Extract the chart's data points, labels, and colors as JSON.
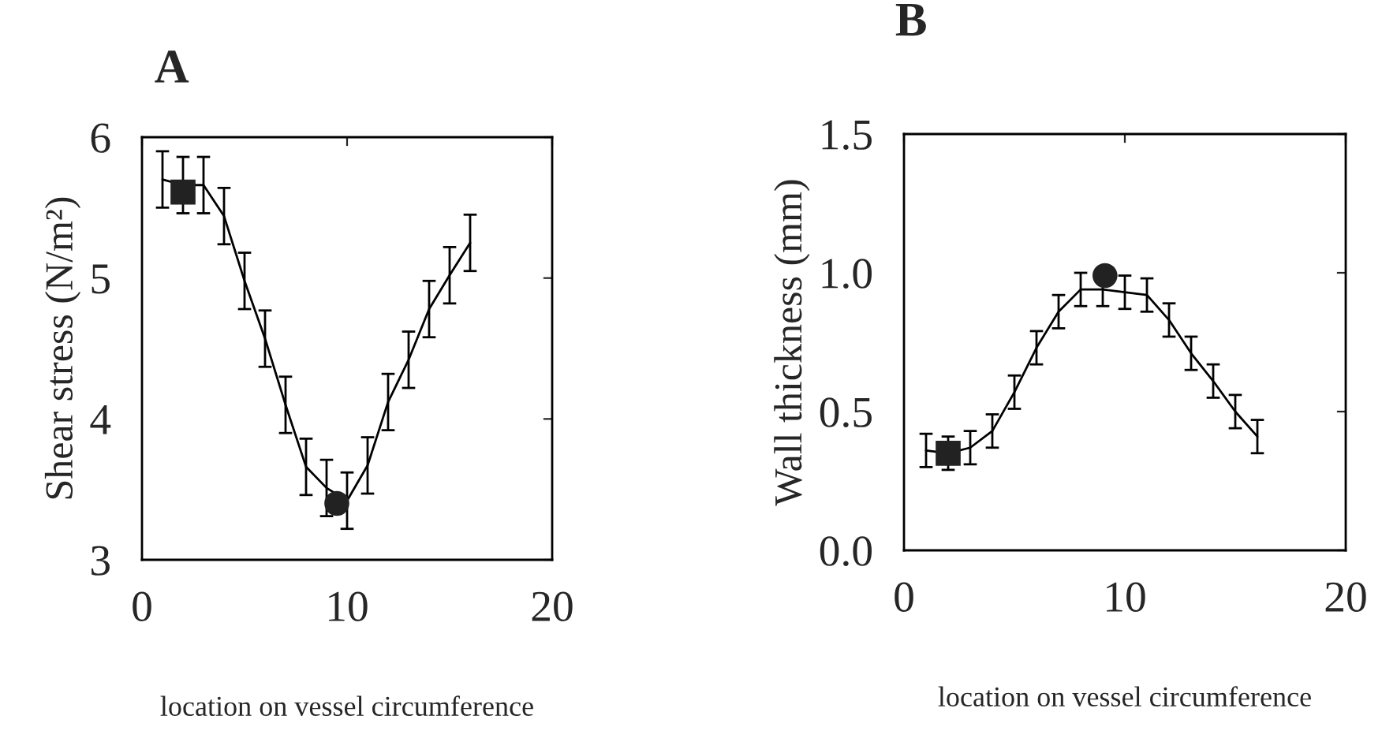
{
  "chart_data": [
    {
      "type": "line",
      "title": "A",
      "xlabel": "location on vessel circumference",
      "ylabel": "Shear stress (N/m²)",
      "xlim": [
        0,
        20
      ],
      "xticks": [
        0,
        10,
        20
      ],
      "ylim": [
        3,
        6
      ],
      "yticks": [
        3,
        4,
        5,
        6
      ],
      "grid": false,
      "marker": "none",
      "line_style": "solid",
      "x": [
        1,
        2,
        3,
        4,
        5,
        6,
        7,
        8,
        9,
        10,
        11,
        12,
        13,
        14,
        15,
        16
      ],
      "series": [
        {
          "color": "#000000",
          "values": [
            5.7,
            5.66,
            5.66,
            5.44,
            4.98,
            4.57,
            4.1,
            3.66,
            3.51,
            3.42,
            3.67,
            4.12,
            4.42,
            4.78,
            5.02,
            5.25
          ],
          "errors": [
            0.2,
            0.2,
            0.2,
            0.2,
            0.2,
            0.2,
            0.2,
            0.2,
            0.2,
            0.2,
            0.2,
            0.2,
            0.2,
            0.2,
            0.2,
            0.2
          ]
        },
        {
          "type": "scatter",
          "marker": "square",
          "color": "#222222",
          "x": [
            2
          ],
          "values": [
            5.61
          ]
        },
        {
          "type": "scatter",
          "marker": "circle",
          "color": "#222222",
          "x": [
            9.5
          ],
          "values": [
            3.4
          ]
        }
      ]
    },
    {
      "type": "line",
      "title": "B",
      "xlabel": "location on vessel circumference",
      "ylabel": "Wall thickness (mm)",
      "xlim": [
        0,
        20
      ],
      "xticks": [
        0,
        10,
        20
      ],
      "ylim": [
        0,
        1.5
      ],
      "yticks": [
        {
          "value": 0,
          "label": "0.0"
        },
        0.5,
        {
          "value": 1,
          "label": "1.0"
        },
        1.5
      ],
      "grid": false,
      "marker": "none",
      "line_style": "solid",
      "x": [
        1,
        2,
        3,
        4,
        5,
        6,
        7,
        8,
        9,
        10,
        11,
        12,
        13,
        14,
        15,
        16
      ],
      "series": [
        {
          "color": "#000000",
          "values": [
            0.36,
            0.35,
            0.37,
            0.43,
            0.57,
            0.73,
            0.86,
            0.94,
            0.94,
            0.93,
            0.92,
            0.83,
            0.71,
            0.61,
            0.5,
            0.41
          ],
          "errors": [
            0.06,
            0.06,
            0.06,
            0.06,
            0.06,
            0.06,
            0.06,
            0.06,
            0.06,
            0.06,
            0.06,
            0.06,
            0.06,
            0.06,
            0.06,
            0.06
          ]
        },
        {
          "type": "scatter",
          "marker": "square",
          "color": "#222222",
          "x": [
            2
          ],
          "values": [
            0.35
          ]
        },
        {
          "type": "scatter",
          "marker": "circle",
          "color": "#222222",
          "x": [
            9.1
          ],
          "values": [
            0.99
          ]
        }
      ]
    }
  ]
}
